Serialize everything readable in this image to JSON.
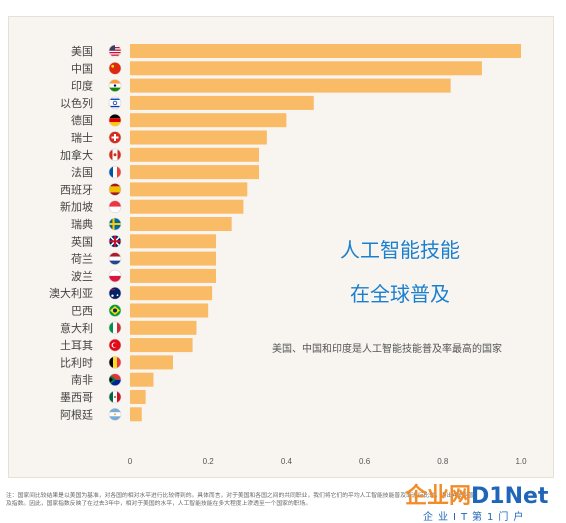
{
  "chart_data": {
    "type": "bar",
    "orientation": "horizontal",
    "title": "人工智能技能在全球普及",
    "title_lines": [
      "人工智能技能",
      "在全球普及"
    ],
    "subtitle": "美国、中国和印度是人工智能技能普及率最高的国家",
    "categories": [
      "美国",
      "中国",
      "印度",
      "以色列",
      "德国",
      "瑞士",
      "加拿大",
      "法国",
      "西班牙",
      "新加坡",
      "瑞典",
      "英国",
      "荷兰",
      "波兰",
      "澳大利亚",
      "巴西",
      "意大利",
      "土耳其",
      "比利时",
      "南非",
      "墨西哥",
      "阿根廷"
    ],
    "values": [
      1.0,
      0.9,
      0.82,
      0.47,
      0.4,
      0.35,
      0.33,
      0.33,
      0.3,
      0.29,
      0.26,
      0.22,
      0.22,
      0.22,
      0.21,
      0.2,
      0.17,
      0.16,
      0.11,
      0.06,
      0.04,
      0.03
    ],
    "xlim": [
      0,
      1.0
    ],
    "xticks": [
      "0",
      "0.2",
      "0.4",
      "0.6",
      "0.8",
      "1.0"
    ],
    "grid": false,
    "bar_color": "#f9bb65",
    "flags": [
      "flag-us",
      "flag-cn",
      "flag-in",
      "flag-il",
      "flag-de",
      "flag-ch",
      "flag-ca",
      "flag-fr",
      "flag-es",
      "flag-sg",
      "flag-se",
      "flag-gb",
      "flag-nl",
      "flag-pl",
      "flag-au",
      "flag-br",
      "flag-it",
      "flag-tr",
      "flag-be",
      "flag-za",
      "flag-mx",
      "flag-ar"
    ]
  },
  "footnote": "注：国家间比较结果是以美国为基准，对各国的相对水平进行比较得到的。具体而言，对于美国和各国之间的共同职业，我们将它们的平均人工智能技能普及率进行比较，得出A技能普及指数。因此，国家指数反映了在过去3年中，相对于美国的水平，人工智能技能在多大程度上渗透至一个国家的职场。",
  "logo": {
    "main": "企业网",
    "brand": "D1Net",
    "sub": "企业IT第1门户"
  },
  "colors": {
    "title": "#1a7fcf",
    "panel_bg": "#f8f5f0",
    "logo_orange": "#f28c28",
    "logo_blue": "#1f66b8"
  }
}
